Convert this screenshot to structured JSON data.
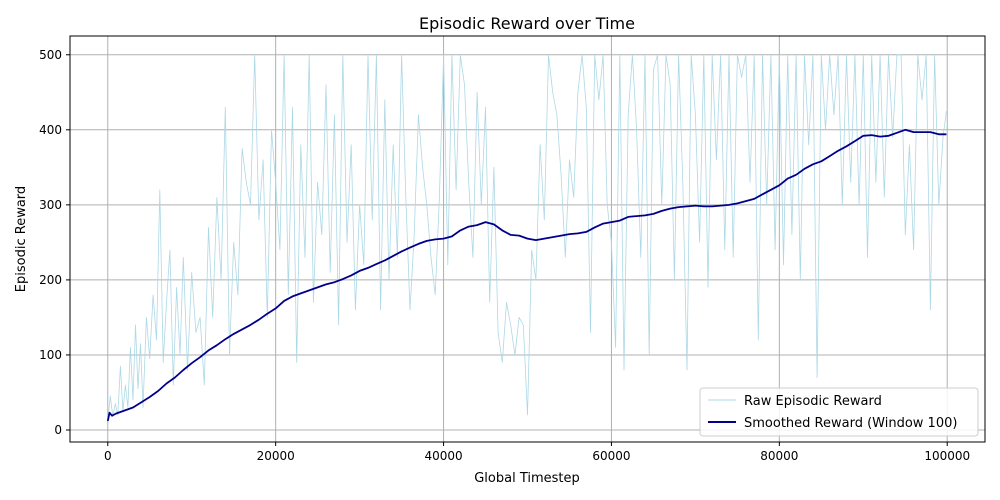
{
  "chart_data": {
    "type": "line",
    "title": "Episodic Reward over Time",
    "xlabel": "Global Timestep",
    "ylabel": "Episodic Reward",
    "xlim": [
      -4500,
      104500
    ],
    "ylim": [
      -16,
      525
    ],
    "xticks": [
      0,
      20000,
      40000,
      60000,
      80000,
      100000
    ],
    "xtick_labels": [
      "0",
      "20000",
      "40000",
      "60000",
      "80000",
      "100000"
    ],
    "yticks": [
      0,
      100,
      200,
      300,
      400,
      500
    ],
    "ytick_labels": [
      "0",
      "100",
      "200",
      "300",
      "400",
      "500"
    ],
    "grid": true,
    "legend_position": "lower-right",
    "colors": {
      "raw": "#add8e6",
      "smoothed": "#00008b",
      "grid": "#b0b0b0"
    },
    "series": [
      {
        "name": "Raw Episodic Reward",
        "style": "thin-light",
        "points": [
          [
            0,
            12
          ],
          [
            300,
            45
          ],
          [
            600,
            18
          ],
          [
            900,
            35
          ],
          [
            1200,
            20
          ],
          [
            1500,
            85
          ],
          [
            1800,
            25
          ],
          [
            2100,
            60
          ],
          [
            2400,
            30
          ],
          [
            2700,
            110
          ],
          [
            3000,
            40
          ],
          [
            3300,
            140
          ],
          [
            3600,
            55
          ],
          [
            3900,
            115
          ],
          [
            4200,
            30
          ],
          [
            4600,
            150
          ],
          [
            5000,
            95
          ],
          [
            5400,
            180
          ],
          [
            5800,
            120
          ],
          [
            6200,
            320
          ],
          [
            6600,
            90
          ],
          [
            7000,
            170
          ],
          [
            7400,
            240
          ],
          [
            7800,
            60
          ],
          [
            8200,
            190
          ],
          [
            8600,
            100
          ],
          [
            9000,
            230
          ],
          [
            9500,
            80
          ],
          [
            10000,
            210
          ],
          [
            10500,
            130
          ],
          [
            11000,
            150
          ],
          [
            11500,
            60
          ],
          [
            12000,
            270
          ],
          [
            12500,
            150
          ],
          [
            13000,
            310
          ],
          [
            13500,
            200
          ],
          [
            14000,
            430
          ],
          [
            14500,
            100
          ],
          [
            15000,
            250
          ],
          [
            15500,
            180
          ],
          [
            16000,
            375
          ],
          [
            16500,
            330
          ],
          [
            17000,
            300
          ],
          [
            17500,
            500
          ],
          [
            18000,
            280
          ],
          [
            18500,
            360
          ],
          [
            19000,
            150
          ],
          [
            19500,
            400
          ],
          [
            20000,
            330
          ],
          [
            20500,
            240
          ],
          [
            21000,
            500
          ],
          [
            21500,
            180
          ],
          [
            22000,
            430
          ],
          [
            22500,
            90
          ],
          [
            23000,
            380
          ],
          [
            23500,
            230
          ],
          [
            24000,
            500
          ],
          [
            24500,
            170
          ],
          [
            25000,
            330
          ],
          [
            25500,
            260
          ],
          [
            26000,
            460
          ],
          [
            26500,
            210
          ],
          [
            27000,
            420
          ],
          [
            27500,
            140
          ],
          [
            28000,
            500
          ],
          [
            28500,
            250
          ],
          [
            29000,
            380
          ],
          [
            29500,
            160
          ],
          [
            30000,
            300
          ],
          [
            30500,
            220
          ],
          [
            31000,
            500
          ],
          [
            31500,
            280
          ],
          [
            32000,
            500
          ],
          [
            32500,
            160
          ],
          [
            33000,
            440
          ],
          [
            33500,
            200
          ],
          [
            34000,
            380
          ],
          [
            34500,
            230
          ],
          [
            35000,
            500
          ],
          [
            35500,
            310
          ],
          [
            36000,
            160
          ],
          [
            36500,
            260
          ],
          [
            37000,
            420
          ],
          [
            37500,
            350
          ],
          [
            38000,
            300
          ],
          [
            38500,
            230
          ],
          [
            39000,
            180
          ],
          [
            39500,
            310
          ],
          [
            40000,
            500
          ],
          [
            40500,
            220
          ],
          [
            41000,
            500
          ],
          [
            41500,
            320
          ],
          [
            42000,
            500
          ],
          [
            42500,
            460
          ],
          [
            43000,
            330
          ],
          [
            43500,
            230
          ],
          [
            44000,
            450
          ],
          [
            44500,
            300
          ],
          [
            45000,
            430
          ],
          [
            45500,
            170
          ],
          [
            46000,
            350
          ],
          [
            46500,
            130
          ],
          [
            47000,
            90
          ],
          [
            47500,
            170
          ],
          [
            48000,
            140
          ],
          [
            48500,
            100
          ],
          [
            49000,
            150
          ],
          [
            49500,
            140
          ],
          [
            50000,
            20
          ],
          [
            50500,
            240
          ],
          [
            51000,
            200
          ],
          [
            51500,
            380
          ],
          [
            52000,
            280
          ],
          [
            52500,
            500
          ],
          [
            53000,
            450
          ],
          [
            53500,
            420
          ],
          [
            54000,
            340
          ],
          [
            54500,
            230
          ],
          [
            55000,
            360
          ],
          [
            55500,
            310
          ],
          [
            56000,
            450
          ],
          [
            56500,
            500
          ],
          [
            57000,
            430
          ],
          [
            57500,
            130
          ],
          [
            58000,
            500
          ],
          [
            58500,
            440
          ],
          [
            59000,
            500
          ],
          [
            59500,
            300
          ],
          [
            60000,
            250
          ],
          [
            60500,
            110
          ],
          [
            61000,
            500
          ],
          [
            61500,
            80
          ],
          [
            62000,
            420
          ],
          [
            62500,
            500
          ],
          [
            63000,
            400
          ],
          [
            63500,
            230
          ],
          [
            64000,
            500
          ],
          [
            64500,
            100
          ],
          [
            65000,
            480
          ],
          [
            65500,
            500
          ],
          [
            66000,
            300
          ],
          [
            66500,
            500
          ],
          [
            67000,
            460
          ],
          [
            67500,
            200
          ],
          [
            68000,
            500
          ],
          [
            68500,
            330
          ],
          [
            69000,
            80
          ],
          [
            69500,
            500
          ],
          [
            70000,
            420
          ],
          [
            70500,
            250
          ],
          [
            71000,
            500
          ],
          [
            71500,
            190
          ],
          [
            72000,
            500
          ],
          [
            72500,
            360
          ],
          [
            73000,
            500
          ],
          [
            73500,
            240
          ],
          [
            74000,
            500
          ],
          [
            74500,
            230
          ],
          [
            75000,
            500
          ],
          [
            75500,
            470
          ],
          [
            76000,
            500
          ],
          [
            76500,
            330
          ],
          [
            77000,
            500
          ],
          [
            77500,
            120
          ],
          [
            78000,
            500
          ],
          [
            78500,
            300
          ],
          [
            79000,
            500
          ],
          [
            79500,
            240
          ],
          [
            80000,
            500
          ],
          [
            80500,
            220
          ],
          [
            81000,
            500
          ],
          [
            81500,
            260
          ],
          [
            82000,
            500
          ],
          [
            82500,
            200
          ],
          [
            83000,
            500
          ],
          [
            83500,
            380
          ],
          [
            84000,
            500
          ],
          [
            84500,
            70
          ],
          [
            85000,
            500
          ],
          [
            85500,
            400
          ],
          [
            86000,
            500
          ],
          [
            86500,
            420
          ],
          [
            87000,
            500
          ],
          [
            87500,
            300
          ],
          [
            88000,
            500
          ],
          [
            88500,
            330
          ],
          [
            89000,
            500
          ],
          [
            89500,
            300
          ],
          [
            90000,
            500
          ],
          [
            90500,
            230
          ],
          [
            91000,
            500
          ],
          [
            91500,
            330
          ],
          [
            92000,
            500
          ],
          [
            92500,
            310
          ],
          [
            93000,
            500
          ],
          [
            93500,
            390
          ],
          [
            94000,
            500
          ],
          [
            94500,
            500
          ],
          [
            95000,
            260
          ],
          [
            95500,
            380
          ],
          [
            96000,
            240
          ],
          [
            96500,
            500
          ],
          [
            97000,
            440
          ],
          [
            97500,
            500
          ],
          [
            98000,
            160
          ],
          [
            98500,
            500
          ],
          [
            99000,
            300
          ],
          [
            99500,
            390
          ],
          [
            99900,
            425
          ]
        ]
      },
      {
        "name": "Smoothed Reward (Window 100)",
        "style": "solid-dark",
        "points": [
          [
            0,
            12
          ],
          [
            200,
            23
          ],
          [
            500,
            19
          ],
          [
            1000,
            22
          ],
          [
            2000,
            26
          ],
          [
            3000,
            30
          ],
          [
            4000,
            37
          ],
          [
            5000,
            44
          ],
          [
            6000,
            52
          ],
          [
            7000,
            62
          ],
          [
            8000,
            70
          ],
          [
            9000,
            80
          ],
          [
            10000,
            89
          ],
          [
            11000,
            97
          ],
          [
            12000,
            106
          ],
          [
            13000,
            113
          ],
          [
            14000,
            121
          ],
          [
            15000,
            128
          ],
          [
            16000,
            134
          ],
          [
            17000,
            140
          ],
          [
            18000,
            147
          ],
          [
            19000,
            155
          ],
          [
            20000,
            162
          ],
          [
            21000,
            172
          ],
          [
            22000,
            178
          ],
          [
            23000,
            182
          ],
          [
            24000,
            186
          ],
          [
            25000,
            190
          ],
          [
            26000,
            194
          ],
          [
            27000,
            197
          ],
          [
            28000,
            201
          ],
          [
            29000,
            206
          ],
          [
            30000,
            212
          ],
          [
            31000,
            216
          ],
          [
            32000,
            221
          ],
          [
            33000,
            226
          ],
          [
            34000,
            232
          ],
          [
            35000,
            238
          ],
          [
            36000,
            243
          ],
          [
            37000,
            248
          ],
          [
            38000,
            252
          ],
          [
            39000,
            254
          ],
          [
            40000,
            255
          ],
          [
            41000,
            258
          ],
          [
            42000,
            266
          ],
          [
            43000,
            271
          ],
          [
            44000,
            273
          ],
          [
            45000,
            277
          ],
          [
            46000,
            274
          ],
          [
            47000,
            266
          ],
          [
            48000,
            260
          ],
          [
            49000,
            259
          ],
          [
            50000,
            255
          ],
          [
            51000,
            253
          ],
          [
            52000,
            255
          ],
          [
            53000,
            257
          ],
          [
            54000,
            259
          ],
          [
            55000,
            261
          ],
          [
            56000,
            262
          ],
          [
            57000,
            264
          ],
          [
            58000,
            270
          ],
          [
            59000,
            275
          ],
          [
            60000,
            277
          ],
          [
            61000,
            279
          ],
          [
            62000,
            284
          ],
          [
            63000,
            285
          ],
          [
            64000,
            286
          ],
          [
            65000,
            288
          ],
          [
            66000,
            292
          ],
          [
            67000,
            295
          ],
          [
            68000,
            297
          ],
          [
            69000,
            298
          ],
          [
            70000,
            299
          ],
          [
            71000,
            298
          ],
          [
            72000,
            298
          ],
          [
            73000,
            299
          ],
          [
            74000,
            300
          ],
          [
            75000,
            302
          ],
          [
            76000,
            305
          ],
          [
            77000,
            308
          ],
          [
            78000,
            314
          ],
          [
            79000,
            320
          ],
          [
            80000,
            326
          ],
          [
            81000,
            335
          ],
          [
            82000,
            340
          ],
          [
            83000,
            348
          ],
          [
            84000,
            354
          ],
          [
            85000,
            358
          ],
          [
            86000,
            365
          ],
          [
            87000,
            372
          ],
          [
            88000,
            378
          ],
          [
            89000,
            385
          ],
          [
            90000,
            392
          ],
          [
            91000,
            393
          ],
          [
            92000,
            391
          ],
          [
            93000,
            392
          ],
          [
            94000,
            396
          ],
          [
            95000,
            400
          ],
          [
            96000,
            397
          ],
          [
            97000,
            397
          ],
          [
            98000,
            397
          ],
          [
            99000,
            394
          ],
          [
            99900,
            394
          ]
        ]
      }
    ]
  }
}
